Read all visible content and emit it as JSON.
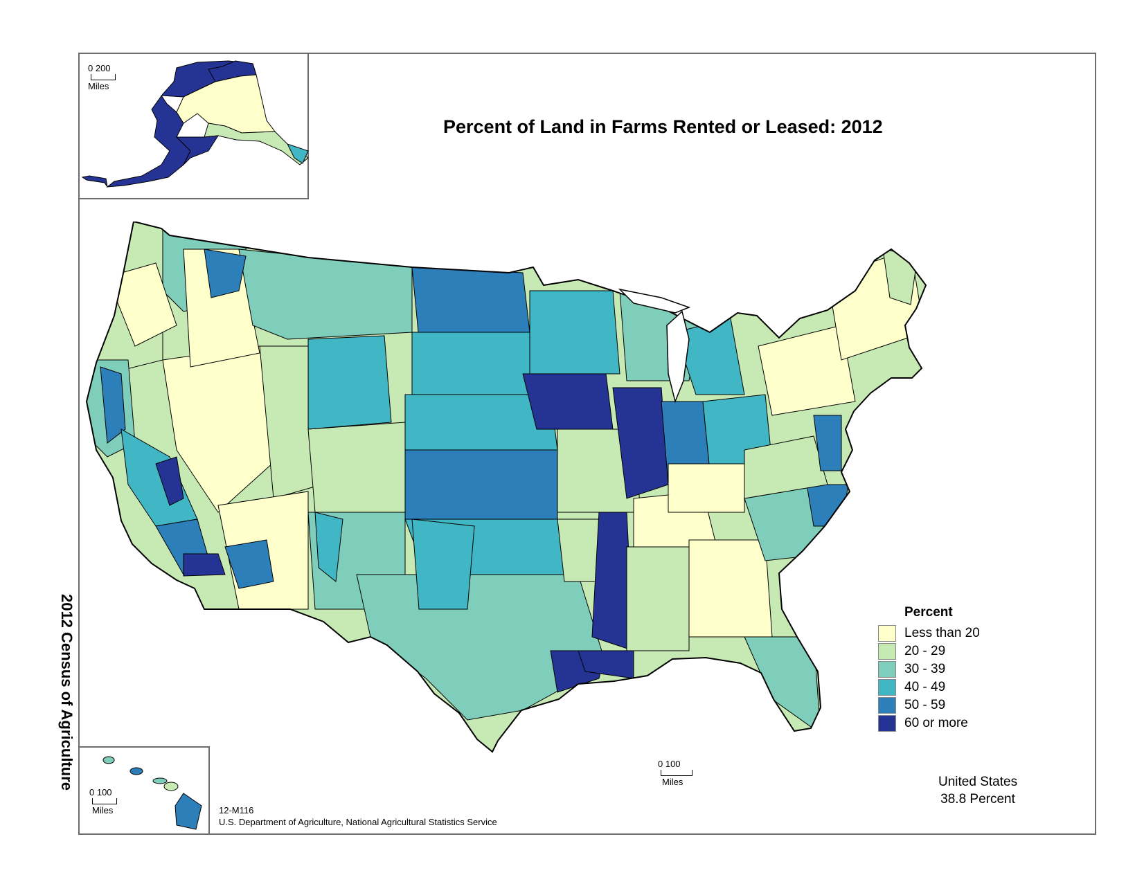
{
  "title": "Percent of Land in Farms Rented or Leased:  2012",
  "side_label": "2012 Census of Agriculture",
  "colors": {
    "lt20": "#ffffcc",
    "c20_29": "#c7e9b4",
    "c30_39": "#7fcdbb",
    "c40_49": "#41b6c4",
    "c50_59": "#2c7fb8",
    "c60plus": "#253494",
    "border": "#000000"
  },
  "legend": {
    "title": "Percent",
    "items": [
      {
        "label": "Less than 20",
        "color": "#ffffcc"
      },
      {
        "label": "20 - 29",
        "color": "#c7e9b4"
      },
      {
        "label": "30 - 39",
        "color": "#7fcdbb"
      },
      {
        "label": "40 - 49",
        "color": "#41b6c4"
      },
      {
        "label": "50 - 59",
        "color": "#2c7fb8"
      },
      {
        "label": "60 or more",
        "color": "#253494"
      }
    ]
  },
  "scales": {
    "alaska": {
      "nums": "0  200",
      "unit": "Miles"
    },
    "hawaii": {
      "nums": "0    100",
      "unit": "Miles"
    },
    "main": {
      "nums": "0    100",
      "unit": "Miles"
    }
  },
  "us_total": {
    "line1": "United States",
    "line2": "38.8 Percent"
  },
  "source": {
    "code": "12-M116",
    "agency": "U.S. Department of Agriculture, National Agricultural Statistics Service"
  }
}
